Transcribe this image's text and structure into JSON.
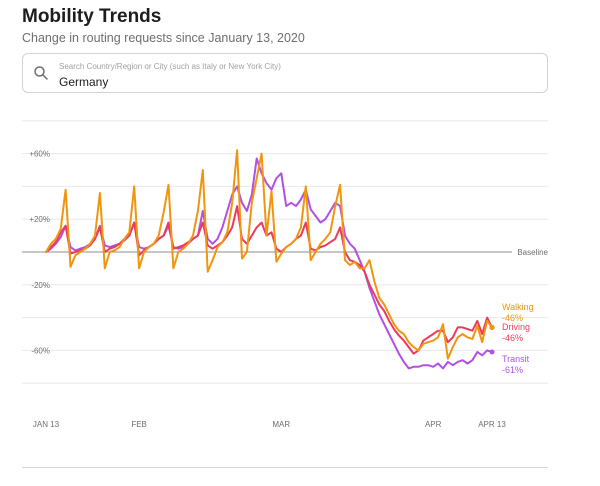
{
  "header": {
    "title": "Mobility Trends",
    "subtitle": "Change in routing requests since January 13, 2020"
  },
  "search": {
    "placeholder": "Search Country/Region or City (such as Italy or New York City)",
    "value": "Germany",
    "icon": "search-icon"
  },
  "chart_data": {
    "type": "line",
    "x_start": "2020-01-13",
    "x_end": "2020-04-13",
    "x_ticks": [
      {
        "date": "2020-01-13",
        "label": "JAN 13"
      },
      {
        "date": "2020-02-01",
        "label": "FEB"
      },
      {
        "date": "2020-03-01",
        "label": "MAR"
      },
      {
        "date": "2020-04-01",
        "label": "APR"
      },
      {
        "date": "2020-04-13",
        "label": "APR 13"
      }
    ],
    "y_ticks": [
      {
        "value": 60,
        "label": "+60%"
      },
      {
        "value": 20,
        "label": "+20%"
      },
      {
        "value": -20,
        "label": "-20%"
      },
      {
        "value": -60,
        "label": "-60%"
      }
    ],
    "ylim": [
      -100,
      80
    ],
    "baseline": {
      "value": 0,
      "label": "Baseline"
    },
    "grid": true,
    "series": [
      {
        "name": "Walking",
        "end_value": "-46%",
        "color": "#f1950f",
        "points": [
          [
            "2020-01-13",
            0
          ],
          [
            "2020-01-14",
            5
          ],
          [
            "2020-01-15",
            8
          ],
          [
            "2020-01-16",
            14
          ],
          [
            "2020-01-17",
            38
          ],
          [
            "2020-01-18",
            -9
          ],
          [
            "2020-01-19",
            -2
          ],
          [
            "2020-01-20",
            0
          ],
          [
            "2020-01-21",
            2
          ],
          [
            "2020-01-22",
            5
          ],
          [
            "2020-01-23",
            10
          ],
          [
            "2020-01-24",
            36
          ],
          [
            "2020-01-25",
            -10
          ],
          [
            "2020-01-26",
            0
          ],
          [
            "2020-01-27",
            1
          ],
          [
            "2020-01-28",
            3
          ],
          [
            "2020-01-29",
            8
          ],
          [
            "2020-01-30",
            12
          ],
          [
            "2020-01-31",
            40
          ],
          [
            "2020-02-01",
            -10
          ],
          [
            "2020-02-02",
            0
          ],
          [
            "2020-02-03",
            3
          ],
          [
            "2020-02-04",
            5
          ],
          [
            "2020-02-05",
            10
          ],
          [
            "2020-02-06",
            24
          ],
          [
            "2020-02-07",
            41
          ],
          [
            "2020-02-08",
            -10
          ],
          [
            "2020-02-09",
            0
          ],
          [
            "2020-02-10",
            2
          ],
          [
            "2020-02-11",
            5
          ],
          [
            "2020-02-12",
            10
          ],
          [
            "2020-02-13",
            25
          ],
          [
            "2020-02-14",
            50
          ],
          [
            "2020-02-15",
            -12
          ],
          [
            "2020-02-16",
            -5
          ],
          [
            "2020-02-17",
            3
          ],
          [
            "2020-02-18",
            6
          ],
          [
            "2020-02-19",
            12
          ],
          [
            "2020-02-20",
            30
          ],
          [
            "2020-02-21",
            62
          ],
          [
            "2020-02-22",
            -4
          ],
          [
            "2020-02-23",
            0
          ],
          [
            "2020-02-24",
            30
          ],
          [
            "2020-02-25",
            45
          ],
          [
            "2020-02-26",
            60
          ],
          [
            "2020-02-27",
            10
          ],
          [
            "2020-02-28",
            37
          ],
          [
            "2020-02-29",
            -6
          ],
          [
            "2020-03-01",
            -1
          ],
          [
            "2020-03-02",
            3
          ],
          [
            "2020-03-03",
            5
          ],
          [
            "2020-03-04",
            8
          ],
          [
            "2020-03-05",
            15
          ],
          [
            "2020-03-06",
            40
          ],
          [
            "2020-03-07",
            -5
          ],
          [
            "2020-03-08",
            0
          ],
          [
            "2020-03-09",
            5
          ],
          [
            "2020-03-10",
            8
          ],
          [
            "2020-03-11",
            12
          ],
          [
            "2020-03-12",
            28
          ],
          [
            "2020-03-13",
            41
          ],
          [
            "2020-03-14",
            -5
          ],
          [
            "2020-03-15",
            -8
          ],
          [
            "2020-03-16",
            -6
          ],
          [
            "2020-03-17",
            -10
          ],
          [
            "2020-03-18",
            -10
          ],
          [
            "2020-03-19",
            -5
          ],
          [
            "2020-03-20",
            -18
          ],
          [
            "2020-03-21",
            -28
          ],
          [
            "2020-03-22",
            -32
          ],
          [
            "2020-03-23",
            -38
          ],
          [
            "2020-03-24",
            -44
          ],
          [
            "2020-03-25",
            -48
          ],
          [
            "2020-03-26",
            -50
          ],
          [
            "2020-03-27",
            -55
          ],
          [
            "2020-03-28",
            -58
          ],
          [
            "2020-03-29",
            -60
          ],
          [
            "2020-03-30",
            -56
          ],
          [
            "2020-03-31",
            -55
          ],
          [
            "2020-04-01",
            -54
          ],
          [
            "2020-04-02",
            -52
          ],
          [
            "2020-04-03",
            -44
          ],
          [
            "2020-04-04",
            -65
          ],
          [
            "2020-04-05",
            -58
          ],
          [
            "2020-04-06",
            -52
          ],
          [
            "2020-04-07",
            -50
          ],
          [
            "2020-04-08",
            -52
          ],
          [
            "2020-04-09",
            -53
          ],
          [
            "2020-04-10",
            -45
          ],
          [
            "2020-04-11",
            -55
          ],
          [
            "2020-04-12",
            -42
          ],
          [
            "2020-04-13",
            -46
          ]
        ]
      },
      {
        "name": "Driving",
        "end_value": "-46%",
        "color": "#ec3a5c",
        "points": [
          [
            "2020-01-13",
            0
          ],
          [
            "2020-01-14",
            3
          ],
          [
            "2020-01-15",
            6
          ],
          [
            "2020-01-16",
            12
          ],
          [
            "2020-01-17",
            16
          ],
          [
            "2020-01-18",
            -1
          ],
          [
            "2020-01-19",
            0
          ],
          [
            "2020-01-20",
            1
          ],
          [
            "2020-01-21",
            2
          ],
          [
            "2020-01-22",
            4
          ],
          [
            "2020-01-23",
            8
          ],
          [
            "2020-01-24",
            15
          ],
          [
            "2020-01-25",
            0
          ],
          [
            "2020-01-26",
            2
          ],
          [
            "2020-01-27",
            3
          ],
          [
            "2020-01-28",
            5
          ],
          [
            "2020-01-29",
            8
          ],
          [
            "2020-01-30",
            10
          ],
          [
            "2020-01-31",
            18
          ],
          [
            "2020-02-01",
            -2
          ],
          [
            "2020-02-02",
            1
          ],
          [
            "2020-02-03",
            3
          ],
          [
            "2020-02-04",
            5
          ],
          [
            "2020-02-05",
            8
          ],
          [
            "2020-02-06",
            10
          ],
          [
            "2020-02-07",
            18
          ],
          [
            "2020-02-08",
            2
          ],
          [
            "2020-02-09",
            3
          ],
          [
            "2020-02-10",
            4
          ],
          [
            "2020-02-11",
            6
          ],
          [
            "2020-02-12",
            8
          ],
          [
            "2020-02-13",
            10
          ],
          [
            "2020-02-14",
            18
          ],
          [
            "2020-02-15",
            4
          ],
          [
            "2020-02-16",
            2
          ],
          [
            "2020-02-17",
            4
          ],
          [
            "2020-02-18",
            6
          ],
          [
            "2020-02-19",
            10
          ],
          [
            "2020-02-20",
            15
          ],
          [
            "2020-02-21",
            28
          ],
          [
            "2020-02-22",
            8
          ],
          [
            "2020-02-23",
            5
          ],
          [
            "2020-02-24",
            10
          ],
          [
            "2020-02-25",
            15
          ],
          [
            "2020-02-26",
            18
          ],
          [
            "2020-02-27",
            10
          ],
          [
            "2020-02-28",
            12
          ],
          [
            "2020-02-29",
            2
          ],
          [
            "2020-03-01",
            0
          ],
          [
            "2020-03-02",
            3
          ],
          [
            "2020-03-03",
            5
          ],
          [
            "2020-03-04",
            8
          ],
          [
            "2020-03-05",
            10
          ],
          [
            "2020-03-06",
            18
          ],
          [
            "2020-03-07",
            2
          ],
          [
            "2020-03-08",
            1
          ],
          [
            "2020-03-09",
            3
          ],
          [
            "2020-03-10",
            4
          ],
          [
            "2020-03-11",
            6
          ],
          [
            "2020-03-12",
            8
          ],
          [
            "2020-03-13",
            15
          ],
          [
            "2020-03-14",
            0
          ],
          [
            "2020-03-15",
            -5
          ],
          [
            "2020-03-16",
            -6
          ],
          [
            "2020-03-17",
            -8
          ],
          [
            "2020-03-18",
            -12
          ],
          [
            "2020-03-19",
            -20
          ],
          [
            "2020-03-20",
            -26
          ],
          [
            "2020-03-21",
            -32
          ],
          [
            "2020-03-22",
            -36
          ],
          [
            "2020-03-23",
            -42
          ],
          [
            "2020-03-24",
            -47
          ],
          [
            "2020-03-25",
            -51
          ],
          [
            "2020-03-26",
            -54
          ],
          [
            "2020-03-27",
            -58
          ],
          [
            "2020-03-28",
            -62
          ],
          [
            "2020-03-29",
            -60
          ],
          [
            "2020-03-30",
            -54
          ],
          [
            "2020-03-31",
            -52
          ],
          [
            "2020-04-01",
            -50
          ],
          [
            "2020-04-02",
            -48
          ],
          [
            "2020-04-03",
            -48
          ],
          [
            "2020-04-04",
            -55
          ],
          [
            "2020-04-05",
            -52
          ],
          [
            "2020-04-06",
            -46
          ],
          [
            "2020-04-07",
            -46
          ],
          [
            "2020-04-08",
            -47
          ],
          [
            "2020-04-09",
            -48
          ],
          [
            "2020-04-10",
            -42
          ],
          [
            "2020-04-11",
            -50
          ],
          [
            "2020-04-12",
            -40
          ],
          [
            "2020-04-13",
            -46
          ]
        ]
      },
      {
        "name": "Transit",
        "end_value": "-61%",
        "color": "#b150e2",
        "points": [
          [
            "2020-01-13",
            0
          ],
          [
            "2020-01-14",
            2
          ],
          [
            "2020-01-15",
            5
          ],
          [
            "2020-01-16",
            9
          ],
          [
            "2020-01-17",
            16
          ],
          [
            "2020-01-18",
            3
          ],
          [
            "2020-01-19",
            1
          ],
          [
            "2020-01-20",
            2
          ],
          [
            "2020-01-21",
            3
          ],
          [
            "2020-01-22",
            5
          ],
          [
            "2020-01-23",
            8
          ],
          [
            "2020-01-24",
            16
          ],
          [
            "2020-01-25",
            4
          ],
          [
            "2020-01-26",
            3
          ],
          [
            "2020-01-27",
            4
          ],
          [
            "2020-01-28",
            5
          ],
          [
            "2020-01-29",
            7
          ],
          [
            "2020-01-30",
            10
          ],
          [
            "2020-01-31",
            18
          ],
          [
            "2020-02-01",
            3
          ],
          [
            "2020-02-02",
            2
          ],
          [
            "2020-02-03",
            3
          ],
          [
            "2020-02-04",
            5
          ],
          [
            "2020-02-05",
            8
          ],
          [
            "2020-02-06",
            10
          ],
          [
            "2020-02-07",
            16
          ],
          [
            "2020-02-08",
            3
          ],
          [
            "2020-02-09",
            2
          ],
          [
            "2020-02-10",
            3
          ],
          [
            "2020-02-11",
            5
          ],
          [
            "2020-02-12",
            8
          ],
          [
            "2020-02-13",
            10
          ],
          [
            "2020-02-14",
            25
          ],
          [
            "2020-02-15",
            8
          ],
          [
            "2020-02-16",
            5
          ],
          [
            "2020-02-17",
            8
          ],
          [
            "2020-02-18",
            15
          ],
          [
            "2020-02-19",
            25
          ],
          [
            "2020-02-20",
            35
          ],
          [
            "2020-02-21",
            40
          ],
          [
            "2020-02-22",
            30
          ],
          [
            "2020-02-23",
            25
          ],
          [
            "2020-02-24",
            35
          ],
          [
            "2020-02-25",
            57
          ],
          [
            "2020-02-26",
            48
          ],
          [
            "2020-02-27",
            42
          ],
          [
            "2020-02-28",
            38
          ],
          [
            "2020-02-29",
            45
          ],
          [
            "2020-03-01",
            48
          ],
          [
            "2020-03-02",
            28
          ],
          [
            "2020-03-03",
            30
          ],
          [
            "2020-03-04",
            28
          ],
          [
            "2020-03-05",
            32
          ],
          [
            "2020-03-06",
            38
          ],
          [
            "2020-03-07",
            26
          ],
          [
            "2020-03-08",
            22
          ],
          [
            "2020-03-09",
            18
          ],
          [
            "2020-03-10",
            20
          ],
          [
            "2020-03-11",
            25
          ],
          [
            "2020-03-12",
            30
          ],
          [
            "2020-03-13",
            28
          ],
          [
            "2020-03-14",
            10
          ],
          [
            "2020-03-15",
            5
          ],
          [
            "2020-03-16",
            2
          ],
          [
            "2020-03-17",
            -5
          ],
          [
            "2020-03-18",
            -12
          ],
          [
            "2020-03-19",
            -22
          ],
          [
            "2020-03-20",
            -30
          ],
          [
            "2020-03-21",
            -38
          ],
          [
            "2020-03-22",
            -44
          ],
          [
            "2020-03-23",
            -50
          ],
          [
            "2020-03-24",
            -56
          ],
          [
            "2020-03-25",
            -62
          ],
          [
            "2020-03-26",
            -67
          ],
          [
            "2020-03-27",
            -71
          ],
          [
            "2020-03-28",
            -70
          ],
          [
            "2020-03-29",
            -70
          ],
          [
            "2020-03-30",
            -69
          ],
          [
            "2020-03-31",
            -69
          ],
          [
            "2020-04-01",
            -70
          ],
          [
            "2020-04-02",
            -68
          ],
          [
            "2020-04-03",
            -71
          ],
          [
            "2020-04-04",
            -67
          ],
          [
            "2020-04-05",
            -69
          ],
          [
            "2020-04-06",
            -67
          ],
          [
            "2020-04-07",
            -66
          ],
          [
            "2020-04-08",
            -68
          ],
          [
            "2020-04-09",
            -66
          ],
          [
            "2020-04-10",
            -61
          ],
          [
            "2020-04-11",
            -63
          ],
          [
            "2020-04-12",
            -60
          ],
          [
            "2020-04-13",
            -61
          ]
        ]
      }
    ]
  }
}
